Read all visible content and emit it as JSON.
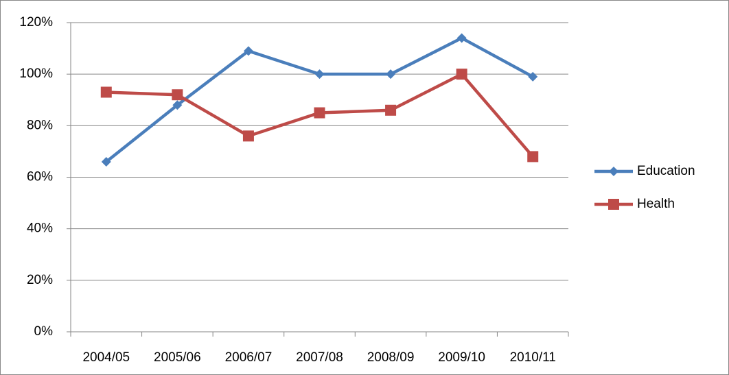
{
  "chart_data": {
    "type": "line",
    "categories": [
      "2004/05",
      "2005/06",
      "2006/07",
      "2007/08",
      "2008/09",
      "2009/10",
      "2010/11"
    ],
    "series": [
      {
        "name": "Education",
        "color": "#4a7ebb",
        "marker": "diamond",
        "values": [
          66,
          88,
          109,
          100,
          100,
          114,
          99
        ]
      },
      {
        "name": "Health",
        "color": "#be4b48",
        "marker": "square",
        "values": [
          93,
          92,
          76,
          85,
          86,
          100,
          68
        ]
      }
    ],
    "ylim": [
      0,
      120
    ],
    "yticks": [
      {
        "value": 0,
        "label": "0%"
      },
      {
        "value": 20,
        "label": "20%"
      },
      {
        "value": 40,
        "label": "40%"
      },
      {
        "value": 60,
        "label": "60%"
      },
      {
        "value": 80,
        "label": "80%"
      },
      {
        "value": 100,
        "label": "100%"
      },
      {
        "value": 120,
        "label": "120%"
      }
    ],
    "grid": true,
    "legend": "right"
  }
}
